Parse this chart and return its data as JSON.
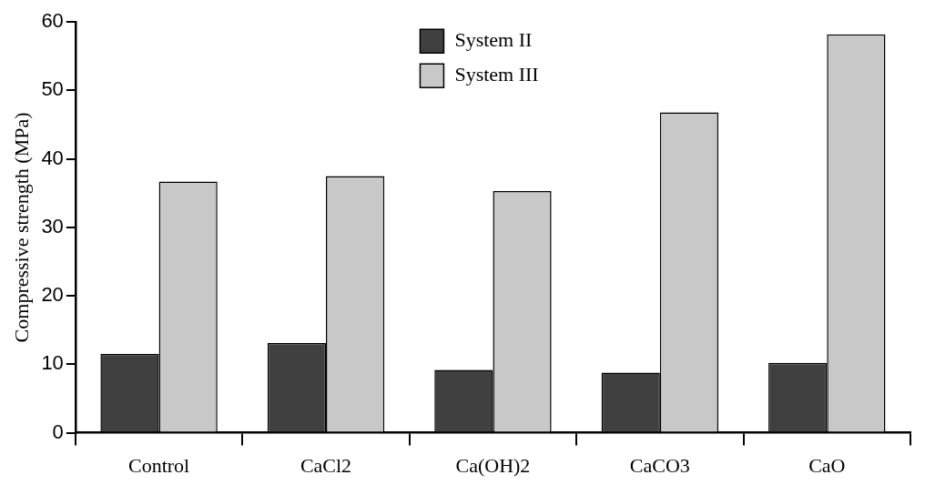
{
  "chart_data": {
    "type": "bar",
    "ylabel": "Compressive strength (MPa)",
    "categories": [
      "Control",
      "CaCl2",
      "Ca(OH)2",
      "CaCO3",
      "CaO"
    ],
    "series": [
      {
        "name": "System II",
        "color": "#404040",
        "values": [
          11.5,
          13.1,
          9.2,
          8.8,
          10.2
        ]
      },
      {
        "name": "System III",
        "color": "#c8c8c8",
        "values": [
          36.7,
          37.5,
          35.3,
          46.8,
          58.2
        ]
      }
    ],
    "ylim": [
      0,
      60
    ],
    "yticks": [
      0,
      10,
      20,
      30,
      40,
      50,
      60
    ],
    "grid": false,
    "legend": "top"
  }
}
